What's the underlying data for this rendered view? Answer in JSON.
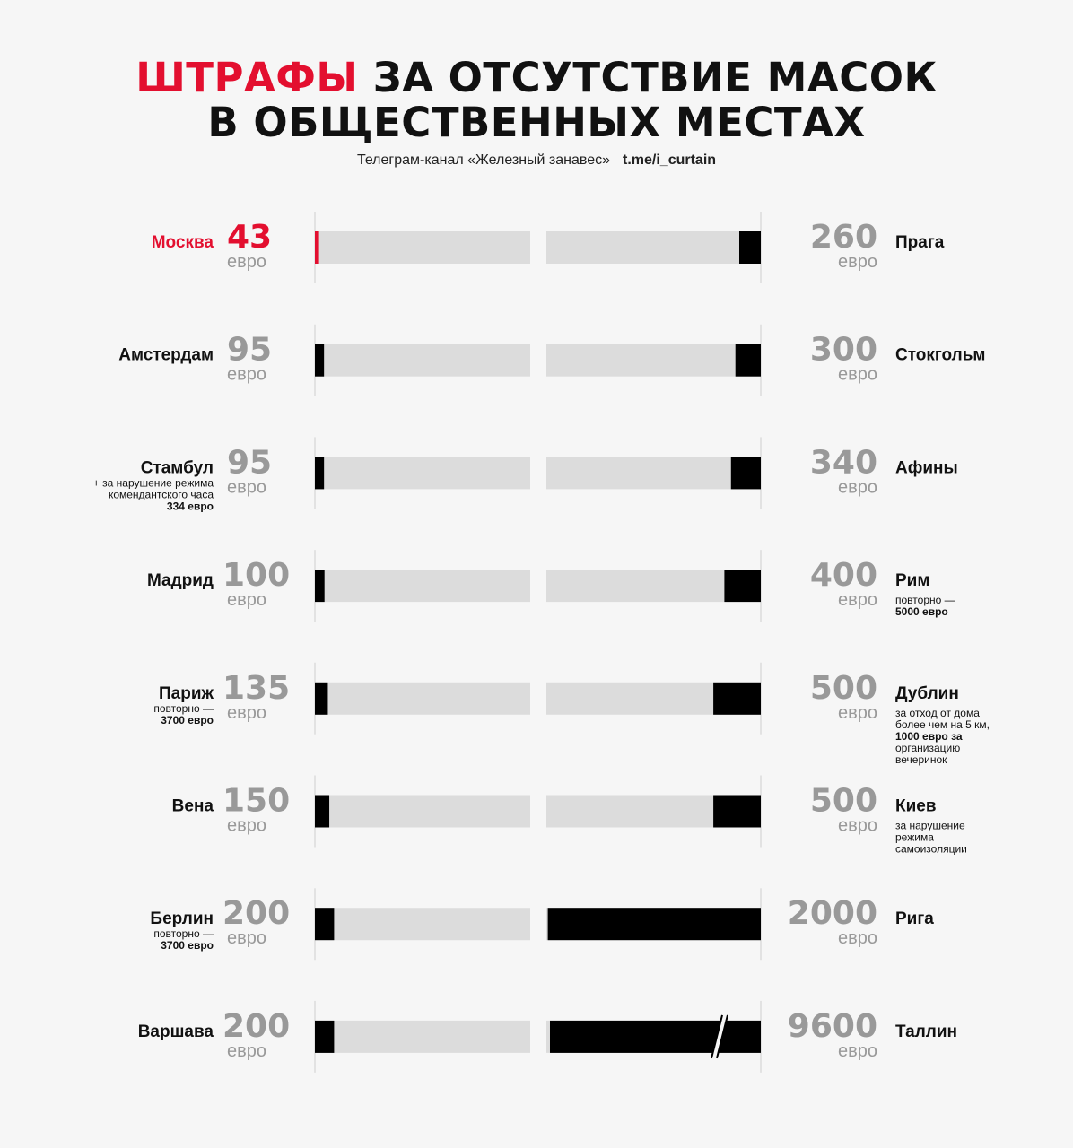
{
  "title": {
    "accent": "ШТРАФЫ",
    "line1_rest": "ЗА ОТСУТСТВИЕ МАСОК",
    "line2": "В ОБЩЕСТВЕННЫХ МЕСТАХ"
  },
  "subtitle": {
    "source": "Телеграм-канал «Железный занавес»",
    "link": "t.me/i_curtain"
  },
  "colors": {
    "accent": "#e30f2f",
    "bar": "#000000",
    "track": "#dcdcdc",
    "number": "#999999"
  },
  "unit": "евро",
  "chart_data": {
    "type": "bar",
    "unit": "евро",
    "left": [
      {
        "city": "Москва",
        "value": 43,
        "highlight": true,
        "note": []
      },
      {
        "city": "Амстердам",
        "value": 95,
        "note": []
      },
      {
        "city": "Стамбул",
        "value": 95,
        "note": [
          {
            "text": "+ за нарушение режима",
            "bold": false
          },
          {
            "text": "комендантского часа",
            "bold": false
          },
          {
            "text": "334 евро",
            "bold": true
          }
        ]
      },
      {
        "city": "Мадрид",
        "value": 100,
        "note": []
      },
      {
        "city": "Париж",
        "value": 135,
        "note": [
          {
            "text": "повторно —",
            "bold": false
          },
          {
            "text": "3700 евро",
            "bold": true
          }
        ]
      },
      {
        "city": "Вена",
        "value": 150,
        "note": []
      },
      {
        "city": "Берлин",
        "value": 200,
        "note": [
          {
            "text": "повторно —",
            "bold": false
          },
          {
            "text": "3700 евро",
            "bold": true
          }
        ]
      },
      {
        "city": "Варшава",
        "value": 200,
        "note": []
      }
    ],
    "right": [
      {
        "city": "Прага",
        "value": 260,
        "note": []
      },
      {
        "city": "Стокгольм",
        "value": 300,
        "note": []
      },
      {
        "city": "Афины",
        "value": 340,
        "note": []
      },
      {
        "city": "Рим",
        "value": 400,
        "note": [
          {
            "text": "повторно —",
            "bold": false
          },
          {
            "text": "5000 евро",
            "bold": true
          }
        ]
      },
      {
        "city": "Дублин",
        "value": 500,
        "note": [
          {
            "text": "за отход от дома",
            "bold": false
          },
          {
            "text": "более чем на 5 км,",
            "bold": false
          },
          {
            "text": "1000 евро за",
            "bold": true
          },
          {
            "text": "организацию",
            "bold": false
          },
          {
            "text": "вечеринок",
            "bold": false
          }
        ]
      },
      {
        "city": "Киев",
        "value": 500,
        "note": [
          {
            "text": "за нарушение",
            "bold": false
          },
          {
            "text": "режима",
            "bold": false
          },
          {
            "text": "самоизоляции",
            "bold": false
          }
        ]
      },
      {
        "city": "Рига",
        "value": 2000,
        "note": []
      },
      {
        "city": "Таллин",
        "value": 9600,
        "broken_axis": true,
        "note": []
      }
    ]
  }
}
